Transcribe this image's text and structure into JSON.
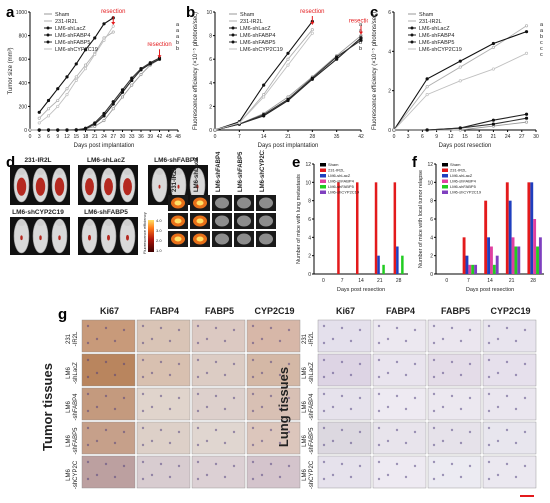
{
  "chart_data": [
    {
      "panel": "a",
      "type": "line",
      "xlabel": "Days post implantation",
      "ylabel": "Tumor size (mm³)",
      "xlim": [
        0,
        48
      ],
      "ylim": [
        0,
        1000
      ],
      "xticks": [
        0,
        3,
        6,
        9,
        12,
        15,
        18,
        21,
        24,
        27,
        30,
        33,
        36,
        39,
        42,
        45,
        48
      ],
      "yticks": [
        0,
        200,
        400,
        600,
        800,
        1000
      ],
      "annotations": [
        "resection",
        "resection"
      ],
      "end_labels": [
        "a",
        "a",
        "a",
        "b",
        "b"
      ],
      "series": [
        {
          "name": "Sham",
          "marker": "none",
          "color": "#999999",
          "x": [
            0,
            3,
            6,
            9,
            12,
            15,
            18,
            21,
            24,
            27,
            30,
            33,
            36,
            39,
            42
          ],
          "y": [
            0,
            0,
            0,
            0,
            0,
            5,
            10,
            30,
            80,
            180,
            280,
            380,
            470,
            550,
            600
          ]
        },
        {
          "name": "231-IR2L",
          "marker": "none",
          "color": "#aaaaaa",
          "x": [
            3,
            6,
            9,
            12,
            15,
            18,
            21,
            24,
            27
          ],
          "y": [
            100,
            180,
            250,
            350,
            450,
            550,
            650,
            780,
            830
          ]
        },
        {
          "name": "LM6-shLacZ",
          "marker": "circle",
          "color": "#111111",
          "x": [
            3,
            6,
            9,
            12,
            15,
            18,
            21,
            24,
            27
          ],
          "y": [
            150,
            250,
            350,
            450,
            560,
            680,
            780,
            900,
            950
          ]
        },
        {
          "name": "LM6-shFABP4",
          "marker": "circle",
          "color": "#111111",
          "x": [
            3,
            6,
            9,
            12,
            15,
            18,
            21,
            24,
            27,
            30,
            33,
            36,
            39,
            42
          ],
          "y": [
            0,
            0,
            0,
            0,
            0,
            10,
            50,
            120,
            220,
            320,
            420,
            510,
            560,
            600
          ]
        },
        {
          "name": "LM6-shFABP5",
          "marker": "circle",
          "color": "#111111",
          "x": [
            3,
            6,
            9,
            12,
            15,
            18,
            21,
            24,
            27,
            30,
            33,
            36,
            39,
            42
          ],
          "y": [
            0,
            0,
            0,
            0,
            0,
            15,
            60,
            140,
            240,
            340,
            440,
            520,
            570,
            610
          ]
        },
        {
          "name": "LM6-shCYP2C19",
          "marker": "none",
          "color": "#bbbbbb",
          "x": [
            3,
            6,
            9,
            12,
            15,
            18,
            21,
            24,
            27
          ],
          "y": [
            60,
            120,
            200,
            300,
            420,
            520,
            640,
            760,
            880
          ]
        }
      ]
    },
    {
      "panel": "b",
      "type": "line",
      "xlabel": "Days post implantation",
      "ylabel": "Fluorescence efficiency (×10⁻⁵ photons/sec)",
      "xlim": [
        0,
        42
      ],
      "ylim": [
        0,
        10
      ],
      "xticks": [
        0,
        7,
        14,
        21,
        28,
        35,
        42
      ],
      "yticks": [
        0,
        2,
        4,
        6,
        8,
        10
      ],
      "annotations": [
        "resection",
        "resection"
      ],
      "end_labels": [
        "a",
        "a",
        "a",
        "b",
        "b"
      ],
      "series": [
        {
          "name": "Sham",
          "x": [
            0,
            7,
            14,
            21,
            28,
            35,
            42
          ],
          "y": [
            0,
            0.5,
            1.4,
            2.8,
            4.5,
            6.3,
            8
          ]
        },
        {
          "name": "231-IR2L",
          "x": [
            0,
            7,
            14,
            21,
            28
          ],
          "y": [
            0,
            0.6,
            3,
            6,
            8.5
          ]
        },
        {
          "name": "LM6-shLacZ",
          "x": [
            0,
            7,
            14,
            21,
            28
          ],
          "y": [
            0,
            0.7,
            3.8,
            6.5,
            9.2
          ]
        },
        {
          "name": "LM6-shFABP4",
          "x": [
            0,
            7,
            14,
            21,
            28,
            35,
            42
          ],
          "y": [
            0,
            0.5,
            1.2,
            2.5,
            4.3,
            6,
            7.8
          ]
        },
        {
          "name": "LM6-shFABP5",
          "x": [
            0,
            7,
            14,
            21,
            28,
            35,
            42
          ],
          "y": [
            0,
            0.5,
            1.3,
            2.6,
            4.4,
            6.2,
            7.6
          ]
        },
        {
          "name": "LM6-shCYP2C19",
          "x": [
            0,
            7,
            14,
            21,
            28
          ],
          "y": [
            0,
            0.6,
            2.8,
            5.5,
            8.2
          ]
        }
      ]
    },
    {
      "panel": "c",
      "type": "line",
      "xlabel": "Days post resection",
      "ylabel": "Fluorescence efficiency (×10⁻⁵ photons/sec)",
      "xlim": [
        0,
        30
      ],
      "ylim": [
        0,
        6
      ],
      "xticks": [
        0,
        3,
        6,
        9,
        12,
        15,
        18,
        21,
        24,
        27,
        30
      ],
      "yticks": [
        0,
        2,
        4,
        6
      ],
      "end_labels": [
        "a",
        "a",
        "b",
        "c",
        "c",
        "c"
      ],
      "series": [
        {
          "name": "Sham",
          "x": [
            0,
            7,
            14,
            21,
            28
          ],
          "y": [
            0,
            0,
            0,
            0.2,
            0.4
          ]
        },
        {
          "name": "231-IR2L",
          "x": [
            0,
            7,
            14,
            21,
            28
          ],
          "y": [
            0,
            2.2,
            3.2,
            4.2,
            5.3
          ]
        },
        {
          "name": "LM6-shLacZ",
          "x": [
            0,
            7,
            14,
            21,
            28
          ],
          "y": [
            0,
            2.6,
            3.5,
            4.4,
            5
          ]
        },
        {
          "name": "LM6-shFABP4",
          "x": [
            0,
            7,
            14,
            21,
            28
          ],
          "y": [
            0,
            0,
            0.1,
            0.5,
            0.8
          ]
        },
        {
          "name": "LM6-shFABP5",
          "x": [
            0,
            7,
            14,
            21,
            28
          ],
          "y": [
            0,
            0,
            0.1,
            0.3,
            0.6
          ]
        },
        {
          "name": "LM6-shCYP2C19",
          "x": [
            0,
            7,
            14,
            21,
            28
          ],
          "y": [
            0,
            1.8,
            2.5,
            3.1,
            3.9
          ]
        }
      ]
    },
    {
      "panel": "e",
      "type": "bar",
      "xlabel": "Days post resection",
      "ylabel": "Number of mice with lung metastasis",
      "categories": [
        "0",
        "7",
        "14",
        "21",
        "28"
      ],
      "ylim": [
        0,
        12
      ],
      "yticks": [
        0,
        2,
        4,
        6,
        8,
        10,
        12
      ],
      "series": [
        {
          "name": "Sham",
          "color": "#000000",
          "values": [
            0,
            0,
            0,
            0,
            0
          ]
        },
        {
          "name": "231-IR2L",
          "color": "#e31a1c",
          "values": [
            0,
            10,
            10,
            10,
            10
          ]
        },
        {
          "name": "LM6-shLacZ",
          "color": "#1f3fbf",
          "values": [
            0,
            0,
            0,
            2,
            3
          ]
        },
        {
          "name": "LM6-shFABP4",
          "color": "#e040a0",
          "values": [
            0,
            0,
            0,
            0,
            0
          ]
        },
        {
          "name": "LM6-shFABP5",
          "color": "#22cc22",
          "values": [
            0,
            0,
            0,
            1,
            2
          ]
        },
        {
          "name": "LM6-shCYP2C19",
          "color": "#7f3fbf",
          "values": [
            0,
            0,
            0,
            0,
            0
          ]
        }
      ]
    },
    {
      "panel": "f",
      "type": "bar",
      "xlabel": "Days post resection",
      "ylabel": "Number of mice with local tumor relapse",
      "categories": [
        "0",
        "7",
        "14",
        "21",
        "28"
      ],
      "ylim": [
        0,
        12
      ],
      "yticks": [
        0,
        2,
        4,
        6,
        8,
        10,
        12
      ],
      "series": [
        {
          "name": "Sham",
          "color": "#000000",
          "values": [
            0,
            0,
            0,
            0,
            0
          ]
        },
        {
          "name": "231-IR2L",
          "color": "#e31a1c",
          "values": [
            0,
            4,
            8,
            10,
            10
          ]
        },
        {
          "name": "LM6-shLacZ",
          "color": "#1f3fbf",
          "values": [
            0,
            2,
            4,
            8,
            10
          ]
        },
        {
          "name": "LM6-shFABP4",
          "color": "#e040a0",
          "values": [
            0,
            1,
            3,
            4,
            6
          ]
        },
        {
          "name": "LM6-shFABP5",
          "color": "#22cc22",
          "values": [
            0,
            1,
            1,
            3,
            3
          ]
        },
        {
          "name": "LM6-shCYP2C19",
          "color": "#7f3fbf",
          "values": [
            0,
            1,
            2,
            3,
            4
          ]
        }
      ]
    }
  ],
  "panel_letters": [
    "a",
    "b",
    "c",
    "d",
    "e",
    "f",
    "g"
  ],
  "panel_d": {
    "groups": [
      "231-IR2L",
      "LM6-shLacZ",
      "LM6-shFABP4",
      "LM6-shCYP2C19",
      "LM6-shFABP5"
    ],
    "lung_labels": [
      "231-IR2L",
      "LM6-shLacZ",
      "LM6-shFABP4",
      "LM6-shFABP5",
      "LM6-shCYP2C19"
    ],
    "colorbar_label": "Fluorescence efficiency",
    "colorbar_ticks": [
      "1.0",
      "2.0",
      "3.0",
      "4.0"
    ]
  },
  "panel_g": {
    "columns": [
      "Ki67",
      "FABP4",
      "FABP5",
      "CYP2C19"
    ],
    "tumor_rows": [
      "231 -IR2L",
      "LM6 -shLacZ",
      "LM6 -shFABP4",
      "LM6 -shFABP5",
      "LM6 -shCYP2C"
    ],
    "lung_rows": [
      "231 -IR2L",
      "LM6 -shLacZ",
      "LM6 -shFABP4",
      "LM6 -shFABP5",
      "LM6 -shCYP2C"
    ],
    "tumor_title": "Tumor tissues",
    "lung_title": "Lung tissues"
  }
}
